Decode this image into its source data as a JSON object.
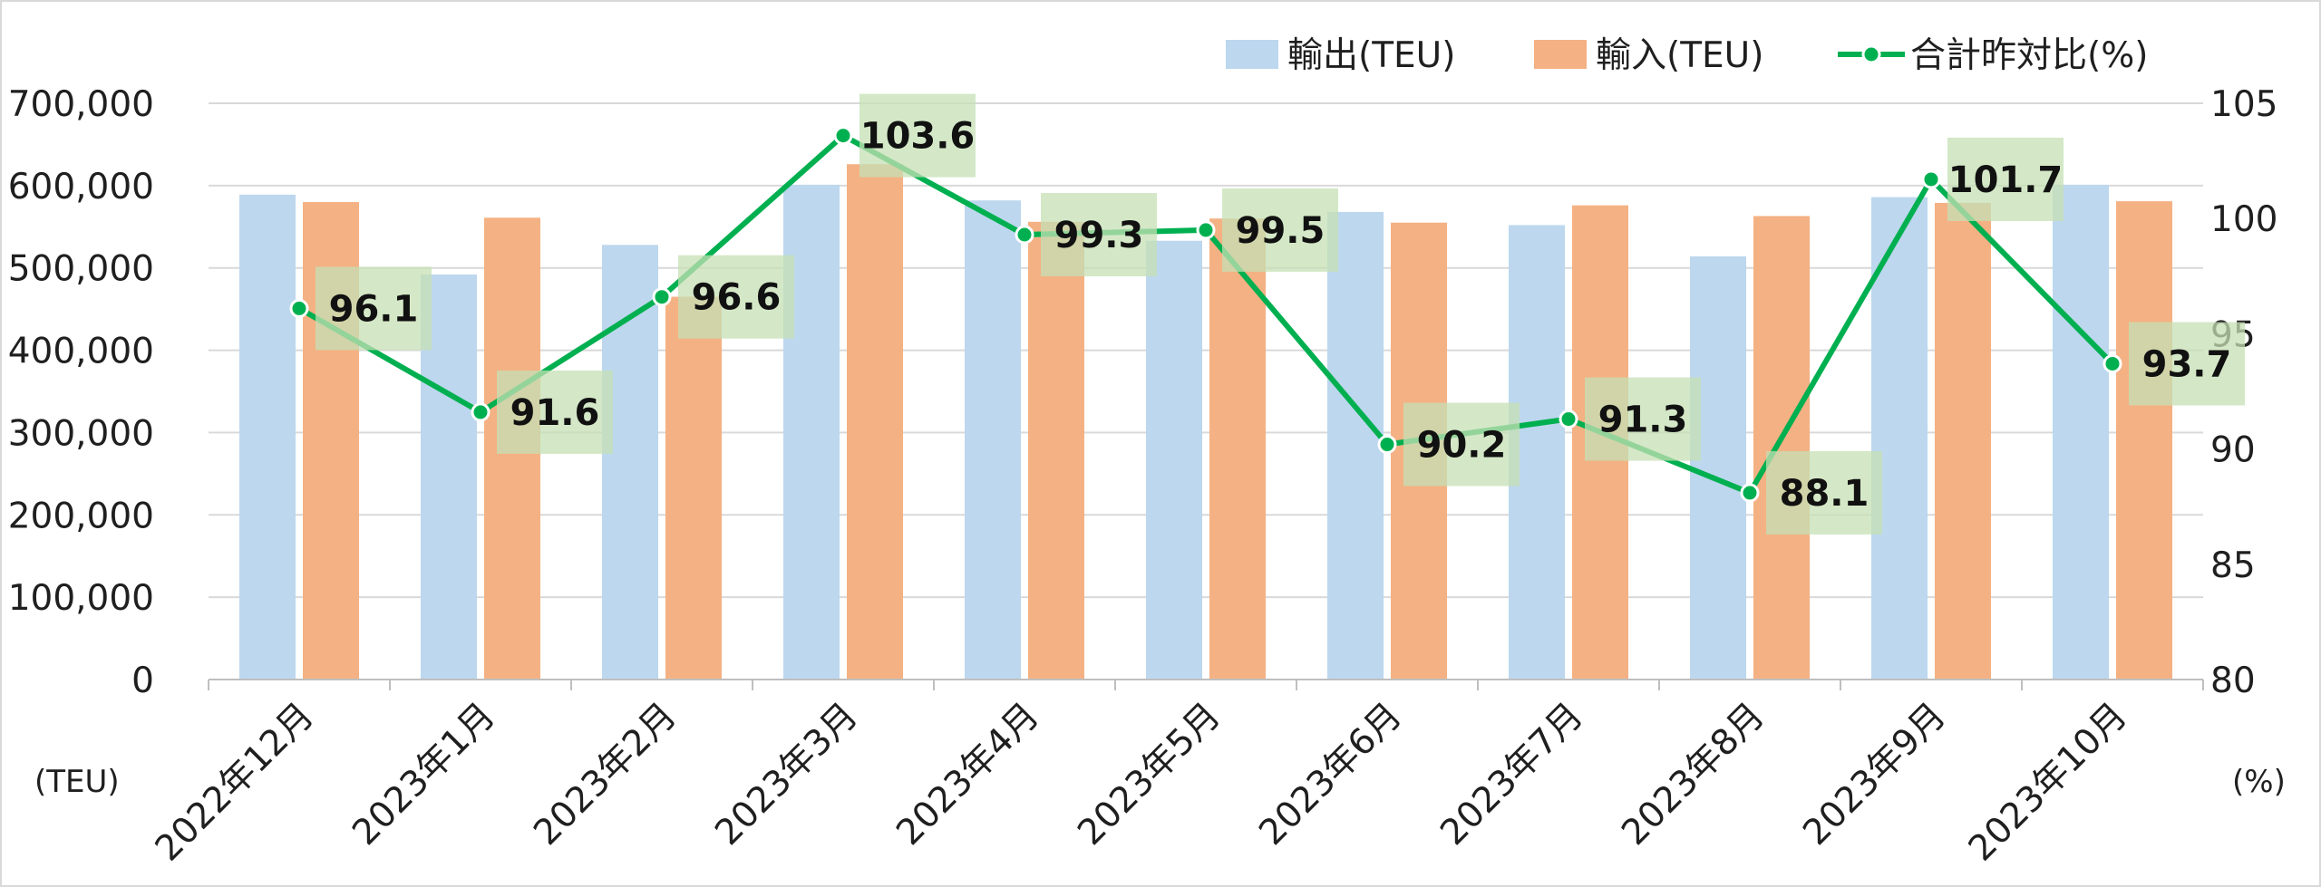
{
  "chart_data": {
    "type": "bar",
    "categories": [
      "2022年12月",
      "2023年1月",
      "2023年2月",
      "2023年3月",
      "2023年4月",
      "2023年5月",
      "2023年6月",
      "2023年7月",
      "2023年8月",
      "2023年9月",
      "2023年10月"
    ],
    "series": [
      {
        "name": "輸出(TEU)",
        "type": "bar",
        "axis": "left",
        "color": "#bdd7ee",
        "values": [
          589000,
          492000,
          528000,
          601000,
          582000,
          533000,
          568000,
          552000,
          514000,
          586000,
          601000
        ]
      },
      {
        "name": "輸入(TEU)",
        "type": "bar",
        "axis": "left",
        "color": "#f4b183",
        "values": [
          580000,
          561000,
          465000,
          626000,
          556000,
          560000,
          555000,
          576000,
          563000,
          579000,
          581000
        ]
      },
      {
        "name": "合計昨対比(%)",
        "type": "line",
        "axis": "right",
        "color": "#00b050",
        "values": [
          96.1,
          91.6,
          96.6,
          103.6,
          99.3,
          99.5,
          90.2,
          91.3,
          88.1,
          101.7,
          93.7
        ],
        "labels": [
          "96.1",
          "91.6",
          "96.6",
          "103.6",
          "99.3",
          "99.5",
          "90.2",
          "91.3",
          "88.1",
          "101.7",
          "93.7"
        ]
      }
    ],
    "y_left": {
      "ylim": [
        0,
        700000
      ],
      "ticks": [
        0,
        100000,
        200000,
        300000,
        400000,
        500000,
        600000,
        700000
      ],
      "tick_labels": [
        "0",
        "100,000",
        "200,000",
        "300,000",
        "400,000",
        "500,000",
        "600,000",
        "700,000"
      ],
      "unit": "(TEU)"
    },
    "y_right": {
      "ylim": [
        80,
        105
      ],
      "ticks": [
        80,
        85,
        90,
        95,
        100,
        105
      ],
      "tick_labels": [
        "80",
        "85",
        "90",
        "95",
        "100",
        "105"
      ],
      "unit": "(%)"
    },
    "grid": true,
    "legend_position": "top-right",
    "label_background": "#c6e0b4"
  }
}
